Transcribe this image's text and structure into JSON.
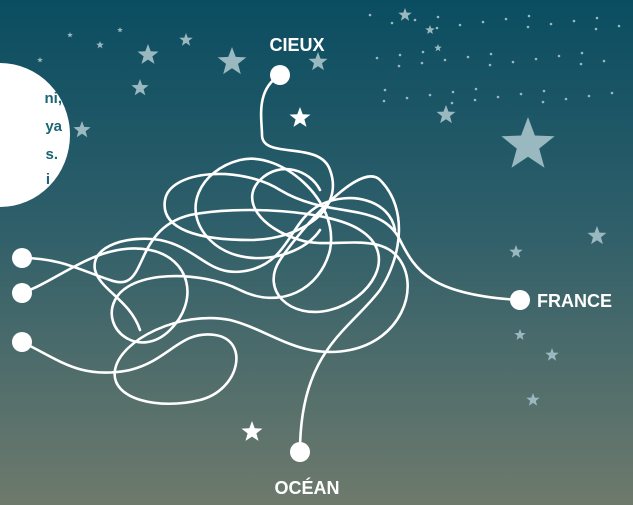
{
  "labels": {
    "top": "CIEUX",
    "right": "FRANCE",
    "bottom": "OCÉAN"
  },
  "bubble": {
    "lines": [
      "ni,",
      "ya",
      "s.",
      "i"
    ]
  }
}
